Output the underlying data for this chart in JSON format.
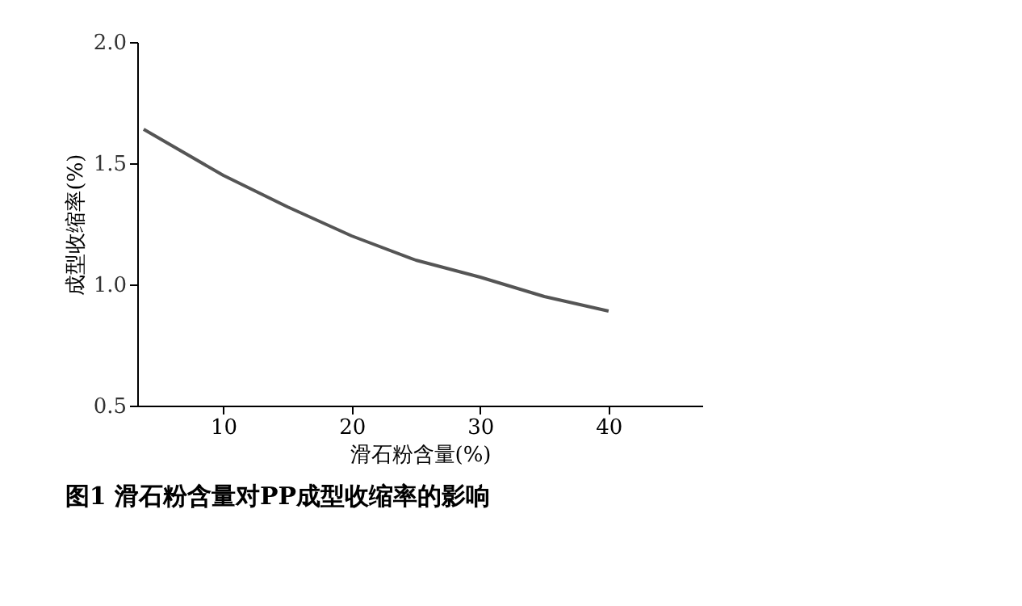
{
  "chart_data": {
    "type": "line",
    "title": "图1  滑石粉含量对PP成型收缩率的影响",
    "xlabel": "滑石粉含量(%)",
    "ylabel": "成型收缩率(%)",
    "x": [
      3.8,
      10,
      15,
      20,
      25,
      30,
      35,
      40
    ],
    "series": [
      {
        "color": "#555555",
        "values": [
          1.64,
          1.45,
          1.32,
          1.2,
          1.1,
          1.03,
          0.95,
          0.89
        ]
      }
    ],
    "xlim": [
      3.3,
      47.3
    ],
    "xticks": [
      10,
      20,
      30,
      40
    ],
    "ylim": [
      0.5,
      2.0
    ],
    "yticks": [
      {
        "value": 0.5,
        "label": "0.5"
      },
      {
        "value": 1.0,
        "label": "1.0"
      },
      {
        "value": 1.5,
        "label": "1.5"
      },
      {
        "value": 2.0,
        "label": "2.0"
      }
    ],
    "grid": false,
    "marker": "none",
    "line_style": "solid"
  }
}
